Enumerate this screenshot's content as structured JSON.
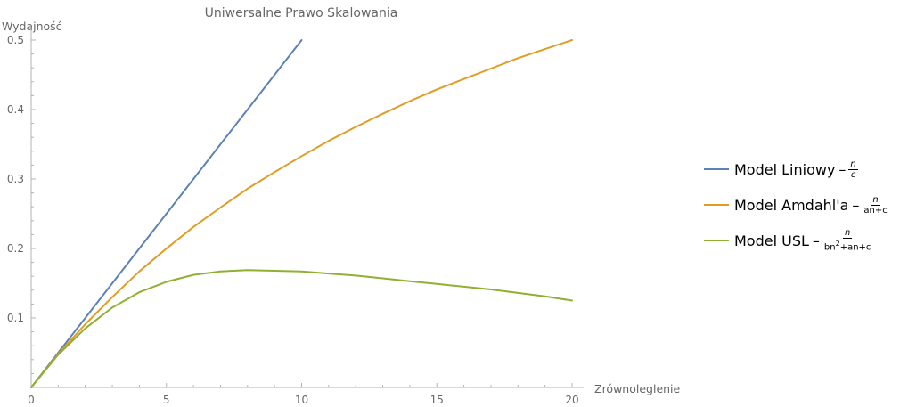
{
  "chart_data": {
    "type": "line",
    "title": "Uniwersalne Prawo Skalowania",
    "xlabel": "Zrównoleglenie",
    "ylabel": "Wydajność",
    "xlim": [
      0,
      20
    ],
    "ylim": [
      0,
      0.5
    ],
    "x_ticks": [
      "0",
      "5",
      "10",
      "15",
      "20"
    ],
    "y_ticks": [
      "0.1",
      "0.2",
      "0.3",
      "0.4",
      "0.5"
    ],
    "grid": false,
    "legend_position": "right",
    "series": [
      {
        "name": "Model Liniowy",
        "color": "#5e81b5",
        "formula": {
          "numerator": "n",
          "denominator": "c"
        },
        "x": [
          0,
          2,
          4,
          6,
          8,
          10
        ],
        "y": [
          0,
          0.1,
          0.2,
          0.3,
          0.4,
          0.5
        ]
      },
      {
        "name": "Model Amdahl'a",
        "color": "#e19c24",
        "formula": {
          "numerator": "n",
          "denominator": "an+c"
        },
        "x": [
          0,
          1,
          2,
          3,
          4,
          5,
          6,
          7,
          8,
          9,
          10,
          11,
          12,
          13,
          14,
          15,
          16,
          17,
          18,
          19,
          20
        ],
        "y": [
          0,
          0.048,
          0.091,
          0.13,
          0.167,
          0.2,
          0.231,
          0.259,
          0.286,
          0.31,
          0.333,
          0.355,
          0.375,
          0.394,
          0.412,
          0.429,
          0.444,
          0.459,
          0.474,
          0.487,
          0.5
        ]
      },
      {
        "name": "Model USL",
        "color": "#8fb032",
        "formula": {
          "numerator": "n",
          "denominator_base": "bn",
          "denominator_exp": "2",
          "denominator_rest": "+an+c"
        },
        "x": [
          0,
          1,
          2,
          3,
          4,
          5,
          6,
          7,
          8,
          9,
          10,
          11,
          12,
          13,
          14,
          15,
          16,
          17,
          18,
          19,
          20
        ],
        "y": [
          0,
          0.047,
          0.085,
          0.115,
          0.137,
          0.152,
          0.162,
          0.167,
          0.169,
          0.168,
          0.167,
          0.164,
          0.161,
          0.157,
          0.153,
          0.149,
          0.145,
          0.141,
          0.136,
          0.131,
          0.125
        ]
      }
    ]
  }
}
